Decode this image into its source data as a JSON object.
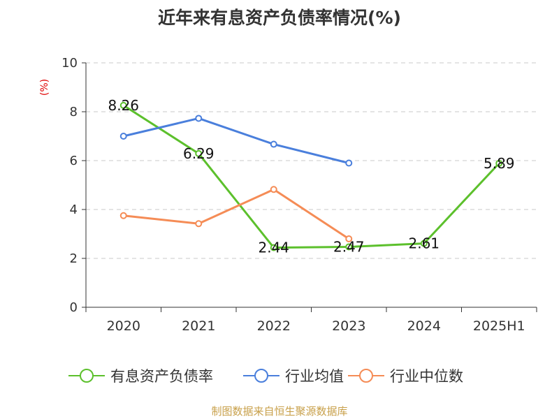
{
  "title": "近年来有息资产负债率情况(%)",
  "source": "制图数据来自恒生聚源数据库",
  "chart_data": {
    "type": "line",
    "title": "近年来有息资产负债率情况(%)",
    "ylabel": "(%)",
    "xlabel": "",
    "categories": [
      "2020",
      "2021",
      "2022",
      "2023",
      "2024",
      "2025H1"
    ],
    "ylim": [
      0,
      10
    ],
    "yticks": [
      0,
      2,
      4,
      6,
      8,
      10
    ],
    "grid": true,
    "legend_position": "bottom",
    "series": [
      {
        "name": "有息资产负债率",
        "color": "#5cc02c",
        "values": [
          8.26,
          6.29,
          2.44,
          2.47,
          2.61,
          5.89
        ],
        "show_labels": true
      },
      {
        "name": "行业均值",
        "color": "#4a7fdc",
        "values": [
          7.0,
          7.73,
          6.67,
          5.9,
          null,
          null
        ],
        "show_labels": false
      },
      {
        "name": "行业中位数",
        "color": "#f58c56",
        "values": [
          3.75,
          3.42,
          4.82,
          2.8,
          null,
          null
        ],
        "show_labels": false
      }
    ]
  }
}
